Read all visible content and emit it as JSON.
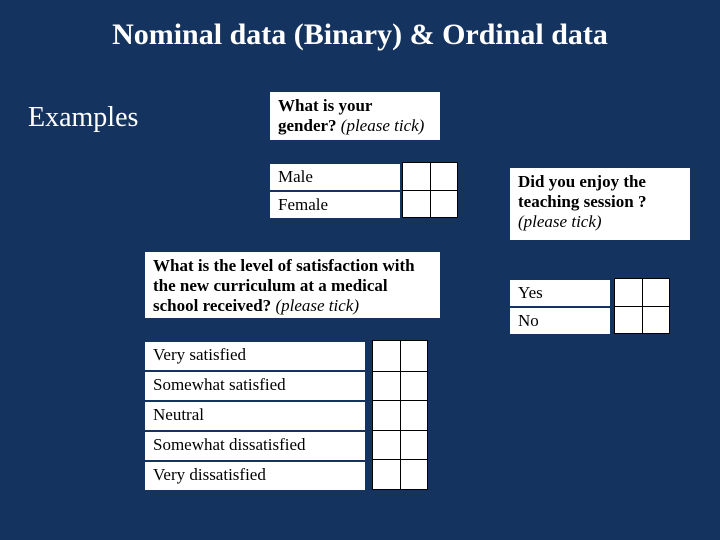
{
  "colors": {
    "background": "#14335e",
    "card_bg": "#ffffff",
    "text_on_bg": "#ffffff",
    "text_on_card": "#000000",
    "checkbox_border": "#000000"
  },
  "typography": {
    "family": "Times New Roman",
    "title_size_pt": 30,
    "subtitle_size_pt": 28,
    "body_size_pt": 17
  },
  "title": "Nominal data (Binary) & Ordinal data",
  "subtitle": "Examples",
  "q_gender": {
    "prompt": "What is your gender?",
    "hint": "(please tick)",
    "options": [
      "Male",
      "Female"
    ]
  },
  "q_satisfaction": {
    "prompt": "What is the level of satisfaction with the new curriculum at a medical school received?",
    "hint": "(please tick)",
    "options": [
      "Very satisfied",
      "Somewhat satisfied",
      "Neutral",
      "Somewhat dissatisfied",
      "Very dissatisfied"
    ]
  },
  "q_enjoy": {
    "prompt": "Did you enjoy the teaching session ?",
    "hint": "(please tick)",
    "options": [
      "Yes",
      "No"
    ]
  }
}
